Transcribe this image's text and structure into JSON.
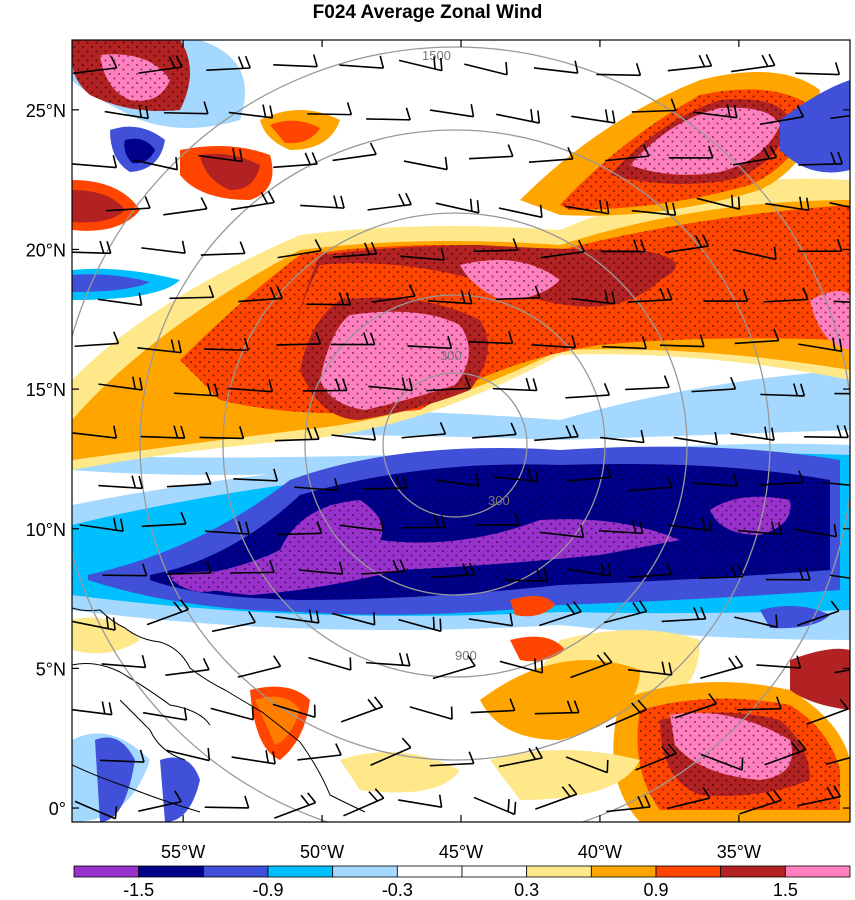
{
  "title": "F024 Average Zonal Wind",
  "map": {
    "lon_range": [
      -59,
      -31
    ],
    "lat_range": [
      -0.5,
      27.5
    ],
    "x_ticks": [
      {
        "value": -55,
        "label": "55°W"
      },
      {
        "value": -50,
        "label": "50°W"
      },
      {
        "value": -45,
        "label": "45°W"
      },
      {
        "value": -40,
        "label": "40°W"
      },
      {
        "value": -35,
        "label": "35°W"
      }
    ],
    "y_ticks": [
      {
        "value": 0,
        "label": "0°"
      },
      {
        "value": 5,
        "label": "5°N"
      },
      {
        "value": 10,
        "label": "10°N"
      },
      {
        "value": 15,
        "label": "15°N"
      },
      {
        "value": 20,
        "label": "20°N"
      },
      {
        "value": 25,
        "label": "25°N"
      }
    ],
    "range_ring_labels": [
      "300",
      "900",
      "1500"
    ],
    "stippling": "dots over strongest anomalies"
  },
  "colorbar": {
    "colors": [
      "#9932cc",
      "#00008b",
      "#4150d8",
      "#00bfff",
      "#a4d8ff",
      "#ffffff",
      "#ffffff",
      "#ffe88a",
      "#ffa500",
      "#ff4500",
      "#b22222",
      "#ff7fbf"
    ],
    "labels": [
      "-1.5",
      "-0.9",
      "-0.3",
      "0.3",
      "0.9",
      "1.5"
    ]
  }
}
